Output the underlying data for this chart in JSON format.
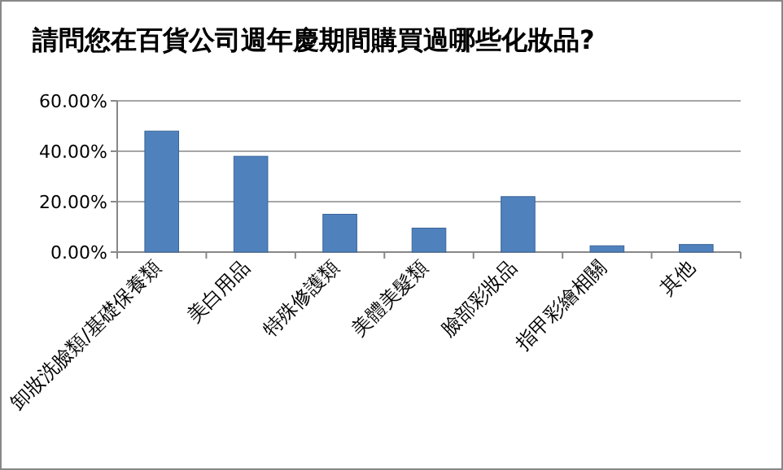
{
  "chart_data": {
    "type": "bar",
    "title": "請問您在百貨公司週年慶期間購買過哪些化妝品?",
    "categories": [
      "卸妝洗臉類/基礎保養類",
      "美白用品",
      "特殊修護類",
      "美體美髮類",
      "臉部彩妝品",
      "指甲彩繪相關",
      "其他"
    ],
    "values": [
      48,
      38,
      15,
      9.5,
      22,
      2.5,
      3
    ],
    "color": "#4f81bd",
    "ylim": [
      0,
      60
    ],
    "yticks": [
      {
        "value": 0,
        "label": "0.00%"
      },
      {
        "value": 20,
        "label": "20.00%"
      },
      {
        "value": 40,
        "label": "40.00%"
      },
      {
        "value": 60,
        "label": "60.00%"
      }
    ],
    "grid": true
  }
}
